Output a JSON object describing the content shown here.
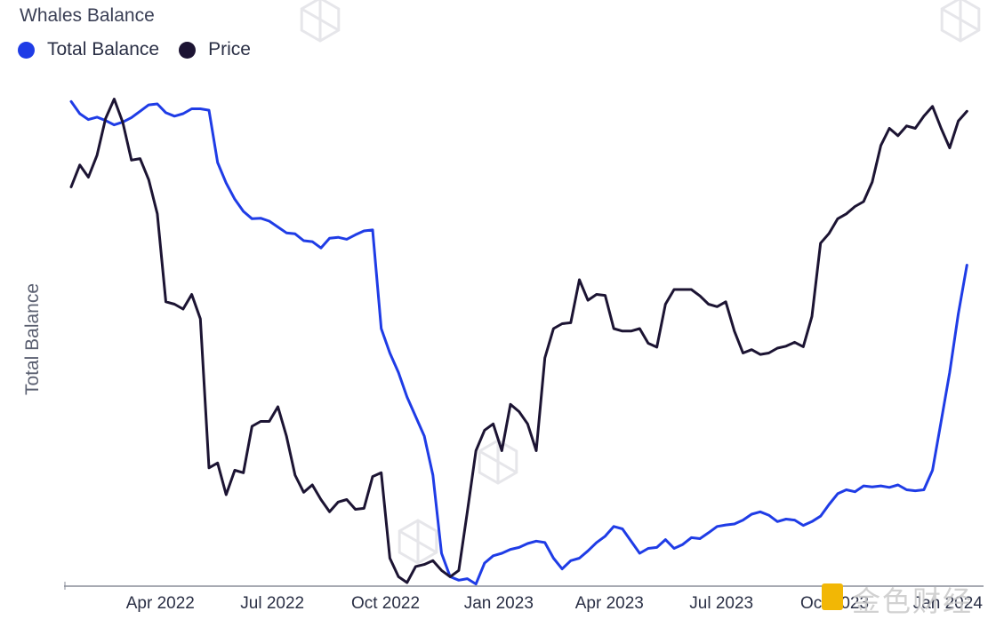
{
  "watermark": {
    "brand_text": "金色财经"
  },
  "chart_data": {
    "type": "line",
    "title": "Whales Balance",
    "ylabel": "Total Balance",
    "xlabel": "",
    "grid": false,
    "legend_position": "top-left",
    "x_ticks": [
      "Apr 2022",
      "Jul 2022",
      "Oct 2022",
      "Jan 2023",
      "Apr 2023",
      "Jul 2023",
      "Oct 2023",
      "Jan 2024"
    ],
    "x_range": [
      "2022-02-28",
      "2024-03-04"
    ],
    "y_range": [
      0,
      1
    ],
    "y_tick_labels": false,
    "series": [
      {
        "name": "Total Balance",
        "color": "#1f3ce6",
        "x": [
          "2022-02-28",
          "2022-03-07",
          "2022-03-14",
          "2022-03-21",
          "2022-03-28",
          "2022-04-04",
          "2022-04-11",
          "2022-04-18",
          "2022-04-25",
          "2022-05-02",
          "2022-05-09",
          "2022-05-16",
          "2022-05-23",
          "2022-05-30",
          "2022-06-06",
          "2022-06-13",
          "2022-06-20",
          "2022-06-27",
          "2022-07-04",
          "2022-07-11",
          "2022-07-18",
          "2022-07-25",
          "2022-08-01",
          "2022-08-08",
          "2022-08-15",
          "2022-08-22",
          "2022-08-29",
          "2022-09-05",
          "2022-09-12",
          "2022-09-19",
          "2022-09-26",
          "2022-10-03",
          "2022-10-10",
          "2022-10-17",
          "2022-10-24",
          "2022-10-31",
          "2022-11-07",
          "2022-11-14",
          "2022-11-21",
          "2022-11-28",
          "2022-12-05",
          "2022-12-12",
          "2022-12-19",
          "2022-12-26",
          "2023-01-02",
          "2023-01-09",
          "2023-01-16",
          "2023-01-23",
          "2023-01-30",
          "2023-02-06",
          "2023-02-13",
          "2023-02-20",
          "2023-02-27",
          "2023-03-06",
          "2023-03-13",
          "2023-03-20",
          "2023-03-27",
          "2023-04-03",
          "2023-04-10",
          "2023-04-17",
          "2023-04-24",
          "2023-05-01",
          "2023-05-08",
          "2023-05-15",
          "2023-05-22",
          "2023-05-29",
          "2023-06-05",
          "2023-06-12",
          "2023-06-19",
          "2023-06-26",
          "2023-07-03",
          "2023-07-10",
          "2023-07-17",
          "2023-07-24",
          "2023-07-31",
          "2023-08-07",
          "2023-08-14",
          "2023-08-21",
          "2023-08-28",
          "2023-09-04",
          "2023-09-11",
          "2023-09-18",
          "2023-09-25",
          "2023-10-02",
          "2023-10-09",
          "2023-10-16",
          "2023-10-23",
          "2023-10-30",
          "2023-11-06",
          "2023-11-13",
          "2023-11-20",
          "2023-11-27",
          "2023-12-04",
          "2023-12-11",
          "2023-12-18",
          "2023-12-25",
          "2024-01-01",
          "2024-01-08",
          "2024-01-15",
          "2024-01-22",
          "2024-01-29",
          "2024-02-05",
          "2024-02-12",
          "2024-02-19",
          "2024-02-26"
        ],
        "values": [
          0.985,
          0.96,
          0.948,
          0.953,
          0.946,
          0.937,
          0.943,
          0.952,
          0.965,
          0.978,
          0.98,
          0.962,
          0.955,
          0.96,
          0.97,
          0.97,
          0.967,
          0.86,
          0.818,
          0.785,
          0.76,
          0.745,
          0.746,
          0.74,
          0.728,
          0.716,
          0.714,
          0.7,
          0.698,
          0.685,
          0.705,
          0.707,
          0.703,
          0.712,
          0.72,
          0.722,
          0.52,
          0.47,
          0.43,
          0.38,
          0.34,
          0.3,
          0.22,
          0.06,
          0.012,
          0.005,
          0.008,
          -0.003,
          0.04,
          0.055,
          0.06,
          0.068,
          0.072,
          0.08,
          0.085,
          0.082,
          0.05,
          0.028,
          0.045,
          0.05,
          0.065,
          0.082,
          0.095,
          0.115,
          0.11,
          0.085,
          0.06,
          0.07,
          0.072,
          0.088,
          0.07,
          0.078,
          0.092,
          0.09,
          0.102,
          0.115,
          0.118,
          0.12,
          0.128,
          0.14,
          0.145,
          0.138,
          0.125,
          0.13,
          0.128,
          0.117,
          0.125,
          0.136,
          0.16,
          0.182,
          0.19,
          0.186,
          0.198,
          0.196,
          0.198,
          0.195,
          0.2,
          0.19,
          0.188,
          0.19,
          0.23,
          0.33,
          0.43,
          0.55,
          0.65
        ]
      },
      {
        "name": "Price",
        "color": "#1c1433",
        "x": [
          "2022-02-28",
          "2022-03-07",
          "2022-03-14",
          "2022-03-21",
          "2022-03-28",
          "2022-04-04",
          "2022-04-11",
          "2022-04-18",
          "2022-04-25",
          "2022-05-02",
          "2022-05-09",
          "2022-05-16",
          "2022-05-23",
          "2022-05-30",
          "2022-06-06",
          "2022-06-13",
          "2022-06-20",
          "2022-06-27",
          "2022-07-04",
          "2022-07-11",
          "2022-07-18",
          "2022-07-25",
          "2022-08-01",
          "2022-08-08",
          "2022-08-15",
          "2022-08-22",
          "2022-08-29",
          "2022-09-05",
          "2022-09-12",
          "2022-09-19",
          "2022-09-26",
          "2022-10-03",
          "2022-10-10",
          "2022-10-17",
          "2022-10-24",
          "2022-10-31",
          "2022-11-07",
          "2022-11-14",
          "2022-11-21",
          "2022-11-28",
          "2022-12-05",
          "2022-12-12",
          "2022-12-19",
          "2022-12-26",
          "2023-01-02",
          "2023-01-09",
          "2023-01-16",
          "2023-01-23",
          "2023-01-30",
          "2023-02-06",
          "2023-02-13",
          "2023-02-20",
          "2023-02-27",
          "2023-03-06",
          "2023-03-13",
          "2023-03-20",
          "2023-03-27",
          "2023-04-03",
          "2023-04-10",
          "2023-04-17",
          "2023-04-24",
          "2023-05-01",
          "2023-05-08",
          "2023-05-15",
          "2023-05-22",
          "2023-05-29",
          "2023-06-05",
          "2023-06-12",
          "2023-06-19",
          "2023-06-26",
          "2023-07-03",
          "2023-07-10",
          "2023-07-17",
          "2023-07-24",
          "2023-07-31",
          "2023-08-07",
          "2023-08-14",
          "2023-08-21",
          "2023-08-28",
          "2023-09-04",
          "2023-09-11",
          "2023-09-18",
          "2023-09-25",
          "2023-10-02",
          "2023-10-09",
          "2023-10-16",
          "2023-10-23",
          "2023-10-30",
          "2023-11-06",
          "2023-11-13",
          "2023-11-20",
          "2023-11-27",
          "2023-12-04",
          "2023-12-11",
          "2023-12-18",
          "2023-12-25",
          "2024-01-01",
          "2024-01-08",
          "2024-01-15",
          "2024-01-22",
          "2024-01-29",
          "2024-02-05",
          "2024-02-12",
          "2024-02-19",
          "2024-02-26"
        ],
        "values": [
          0.81,
          0.855,
          0.83,
          0.875,
          0.95,
          0.99,
          0.942,
          0.865,
          0.868,
          0.825,
          0.755,
          0.575,
          0.57,
          0.56,
          0.59,
          0.54,
          0.235,
          0.245,
          0.18,
          0.23,
          0.225,
          0.32,
          0.33,
          0.33,
          0.36,
          0.3,
          0.22,
          0.185,
          0.2,
          0.17,
          0.145,
          0.165,
          0.17,
          0.15,
          0.152,
          0.217,
          0.225,
          0.05,
          0.012,
          0.0,
          0.033,
          0.037,
          0.045,
          0.025,
          0.012,
          0.025,
          0.145,
          0.27,
          0.312,
          0.325,
          0.27,
          0.365,
          0.35,
          0.325,
          0.27,
          0.46,
          0.52,
          0.53,
          0.532,
          0.62,
          0.578,
          0.59,
          0.588,
          0.52,
          0.515,
          0.515,
          0.52,
          0.49,
          0.482,
          0.57,
          0.6,
          0.6,
          0.6,
          0.587,
          0.57,
          0.565,
          0.575,
          0.515,
          0.47,
          0.477,
          0.467,
          0.47,
          0.48,
          0.484,
          0.492,
          0.483,
          0.545,
          0.695,
          0.715,
          0.745,
          0.755,
          0.77,
          0.78,
          0.82,
          0.895,
          0.93,
          0.915,
          0.935,
          0.93,
          0.955,
          0.975,
          0.93,
          0.89,
          0.945,
          0.965
        ]
      }
    ]
  }
}
